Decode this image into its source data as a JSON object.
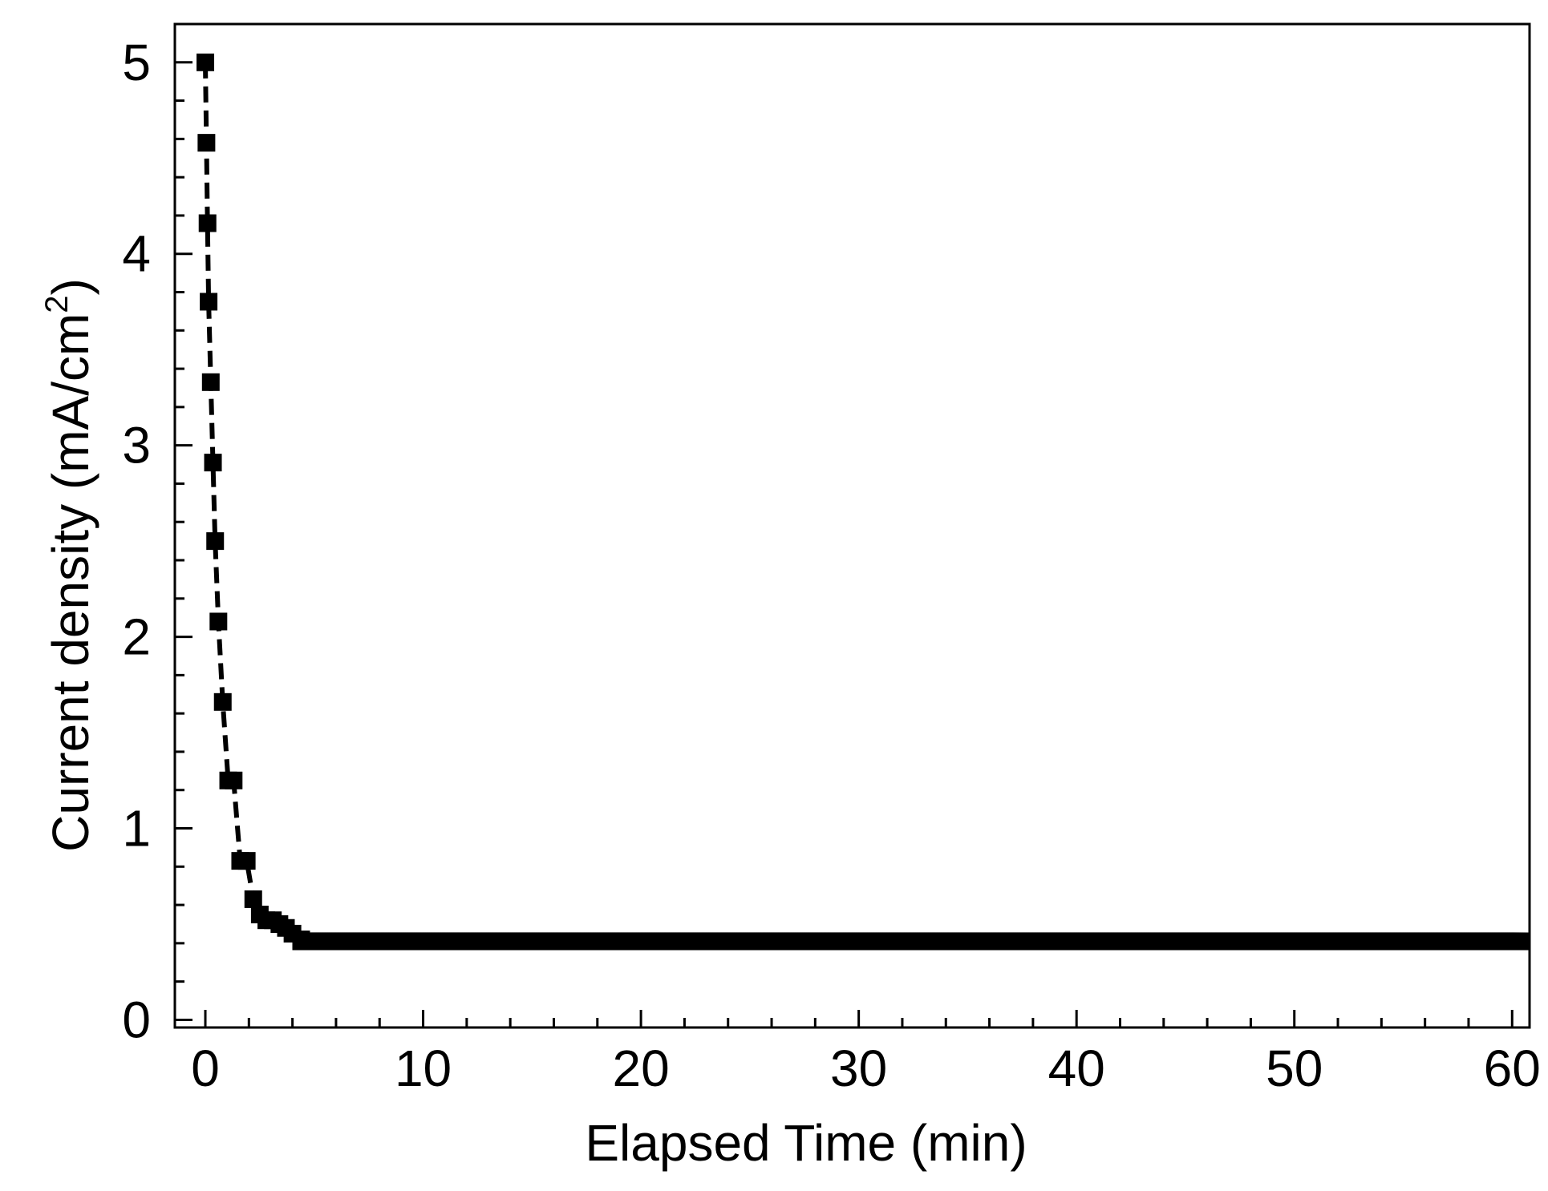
{
  "chart_data": {
    "type": "scatter",
    "xlabel": "Elapsed Time (min)",
    "ylabel": "Current density (mA/cm",
    "ylabel_superscript": "2",
    "ylabel_close": ")",
    "xlim": [
      -1.4,
      60.8
    ],
    "ylim": [
      -0.04,
      5.2
    ],
    "x_ticks": [
      0,
      10,
      20,
      30,
      40,
      50,
      60
    ],
    "x_minor_step": 2,
    "y_ticks": [
      0,
      1,
      2,
      3,
      4,
      5
    ],
    "y_minor_step": 0.2,
    "grid": false,
    "marker": "square",
    "line_style": "dashed",
    "color": "#000000",
    "series": [
      {
        "x": [
          0,
          0.05,
          0.1,
          0.15,
          0.25,
          0.35,
          0.45,
          0.6,
          0.8,
          1.05,
          1.3,
          1.6,
          1.9,
          2.2,
          2.5,
          2.8,
          3.1,
          3.4,
          3.7,
          4.0,
          4.4
        ],
        "y": [
          5.0,
          4.58,
          4.16,
          3.75,
          3.33,
          2.91,
          2.5,
          2.08,
          1.66,
          1.25,
          1.25,
          0.83,
          0.83,
          0.63,
          0.55,
          0.52,
          0.52,
          0.5,
          0.48,
          0.45,
          0.42
        ],
        "plateau": {
          "x_start": 4.4,
          "x_end": 60.4,
          "y": 0.41
        }
      }
    ]
  }
}
